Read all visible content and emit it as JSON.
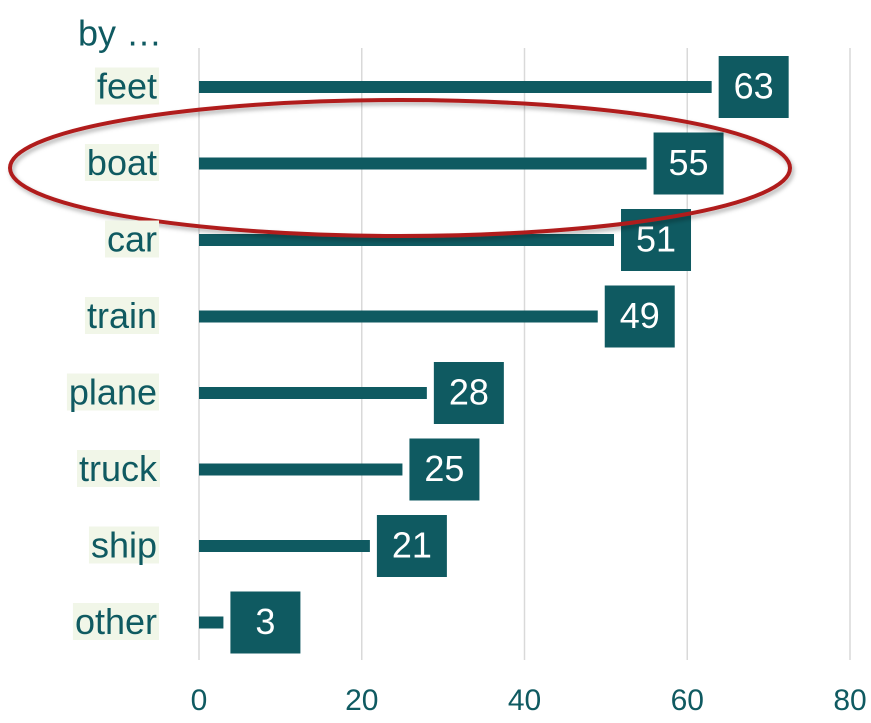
{
  "chart_data": {
    "type": "barh",
    "title": "by …",
    "categories": [
      "feet",
      "boat",
      "car",
      "train",
      "plane",
      "truck",
      "ship",
      "other"
    ],
    "values": [
      63,
      55,
      51,
      49,
      28,
      25,
      21,
      3
    ],
    "color": "#0f5a61",
    "xlim": [
      0,
      80
    ],
    "xticks": [
      0,
      20,
      40,
      60,
      80
    ],
    "grid": true
  }
}
